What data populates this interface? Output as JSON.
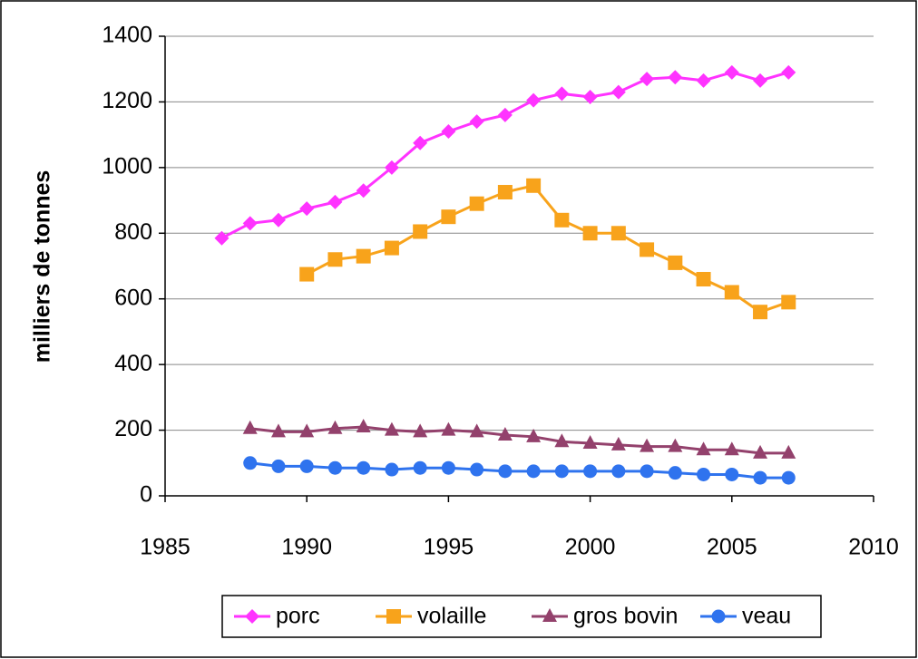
{
  "chart_data": {
    "type": "line",
    "ylabel": "milliers de tonnes",
    "x": [
      1987,
      1988,
      1989,
      1990,
      1991,
      1992,
      1993,
      1994,
      1995,
      1996,
      1997,
      1998,
      1999,
      2000,
      2001,
      2002,
      2003,
      2004,
      2005,
      2006,
      2007
    ],
    "series": [
      {
        "name": "porc",
        "color": "#ff33ff",
        "marker": "diamond",
        "values": [
          785,
          830,
          840,
          875,
          895,
          930,
          1000,
          1075,
          1110,
          1140,
          1160,
          1205,
          1225,
          1215,
          1230,
          1270,
          1275,
          1265,
          1290,
          1265,
          1290
        ]
      },
      {
        "name": "volaille",
        "color": "#f8a31b",
        "marker": "square",
        "values": [
          null,
          null,
          null,
          675,
          720,
          730,
          755,
          805,
          850,
          890,
          925,
          945,
          840,
          800,
          800,
          750,
          710,
          660,
          620,
          560,
          590
        ]
      },
      {
        "name": "gros bovin",
        "color": "#93416c",
        "marker": "triangle",
        "values": [
          null,
          205,
          195,
          195,
          205,
          210,
          200,
          195,
          200,
          195,
          185,
          180,
          165,
          160,
          155,
          150,
          150,
          140,
          140,
          130,
          130
        ]
      },
      {
        "name": "veau",
        "color": "#2f73ee",
        "marker": "circle",
        "values": [
          null,
          100,
          90,
          90,
          85,
          85,
          80,
          85,
          85,
          80,
          75,
          75,
          75,
          75,
          75,
          75,
          70,
          65,
          65,
          55,
          55
        ]
      }
    ],
    "xlim": [
      1985,
      2010
    ],
    "xticks": [
      1985,
      1990,
      1995,
      2000,
      2005,
      2010
    ],
    "ylim": [
      0,
      1400
    ],
    "yticks": [
      0,
      200,
      400,
      600,
      800,
      1000,
      1200,
      1400
    ],
    "grid": true,
    "legend": "bottom"
  }
}
